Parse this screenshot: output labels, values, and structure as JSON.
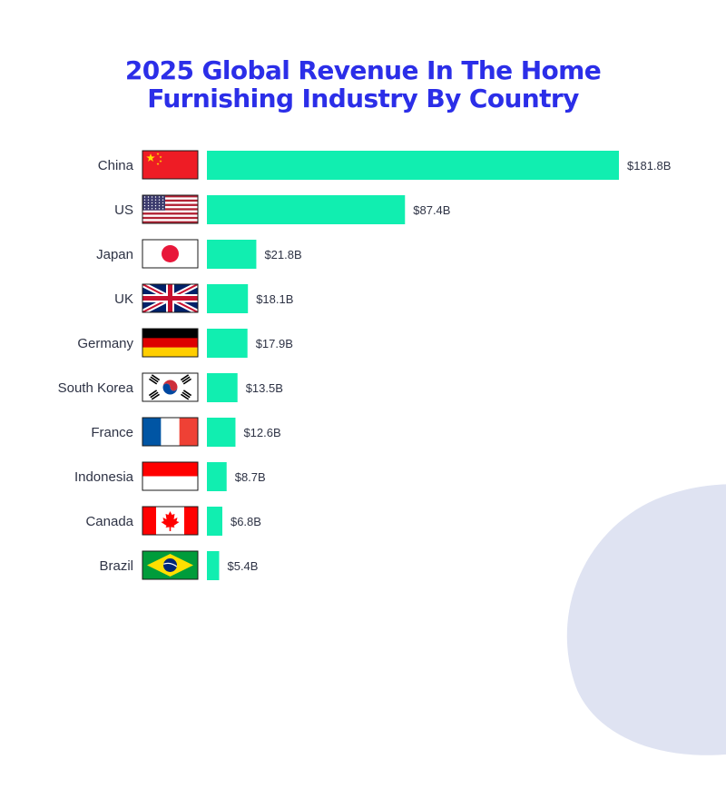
{
  "title_lines": [
    "2025 Global Revenue In The Home",
    "Furnishing Industry By Country"
  ],
  "colors": {
    "title": "#2b2ee8",
    "bar": "#11eeb0",
    "text": "#2e3345",
    "blob": "#dfe3f2"
  },
  "chart_data": {
    "type": "bar",
    "orientation": "horizontal",
    "title": "2025 Global Revenue In The Home Furnishing Industry By Country",
    "categories": [
      "China",
      "US",
      "Japan",
      "UK",
      "Germany",
      "South Korea",
      "France",
      "Indonesia",
      "Canada",
      "Brazil"
    ],
    "values": [
      181.8,
      87.4,
      21.8,
      18.1,
      17.9,
      13.5,
      12.6,
      8.7,
      6.8,
      5.4
    ],
    "value_labels": [
      "$181.8B",
      "$87.4B",
      "$21.8B",
      "$18.1B",
      "$17.9B",
      "$13.5B",
      "$12.6B",
      "$8.7B",
      "$6.8B",
      "$5.4B"
    ],
    "flag_icons": [
      "china-flag-icon",
      "us-flag-icon",
      "japan-flag-icon",
      "uk-flag-icon",
      "germany-flag-icon",
      "south-korea-flag-icon",
      "france-flag-icon",
      "indonesia-flag-icon",
      "canada-flag-icon",
      "brazil-flag-icon"
    ],
    "xlim": [
      0,
      181.8
    ],
    "grid": false,
    "legend": "none"
  }
}
